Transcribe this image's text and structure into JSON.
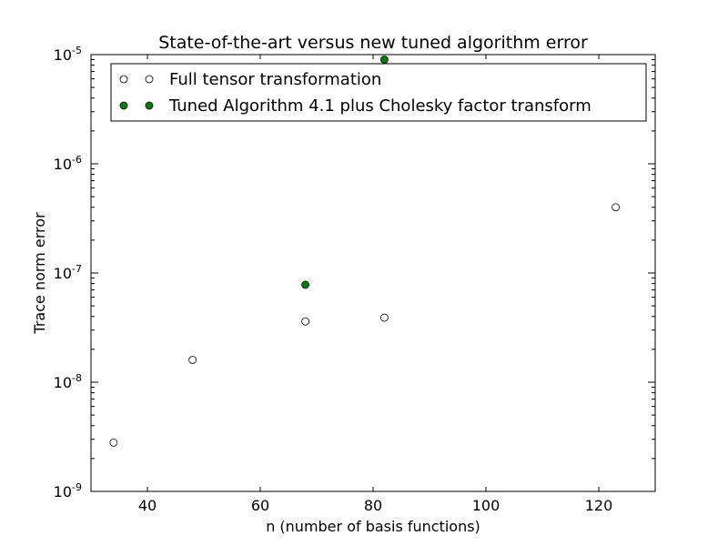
{
  "chart_data": {
    "type": "scatter",
    "title": "State-of-the-art versus new tuned algorithm error",
    "xlabel": "n (number of basis functions)",
    "ylabel": "Trace norm error",
    "xlim": [
      30,
      130
    ],
    "ylim": [
      1e-09,
      1e-05
    ],
    "yscale": "log",
    "grid": false,
    "legend_position": "top",
    "x_ticks": [
      40,
      60,
      80,
      100,
      120
    ],
    "x_tick_labels": [
      "40",
      "60",
      "80",
      "100",
      "120"
    ],
    "y_ticks": [
      1e-09,
      1e-08,
      1e-07,
      1e-06,
      1e-05
    ],
    "y_tick_labels": [
      {
        "base": "10",
        "exp": "-9"
      },
      {
        "base": "10",
        "exp": "-8"
      },
      {
        "base": "10",
        "exp": "-7"
      },
      {
        "base": "10",
        "exp": "-6"
      },
      {
        "base": "10",
        "exp": "-5"
      }
    ],
    "series": [
      {
        "name": "Full tensor transformation",
        "marker": "hollow-circle",
        "color": "#ffffff",
        "edge_color": "#000000",
        "x": [
          34,
          48,
          68,
          82,
          123
        ],
        "y": [
          2.8e-09,
          1.6e-08,
          3.6e-08,
          3.9e-08,
          4e-07
        ]
      },
      {
        "name": "Tuned Algorithm 4.1 plus Cholesky factor transform",
        "marker": "filled-circle",
        "color": "#008000",
        "edge_color": "#000000",
        "x": [
          68,
          82
        ],
        "y": [
          7.8e-08,
          9e-06
        ]
      }
    ]
  }
}
